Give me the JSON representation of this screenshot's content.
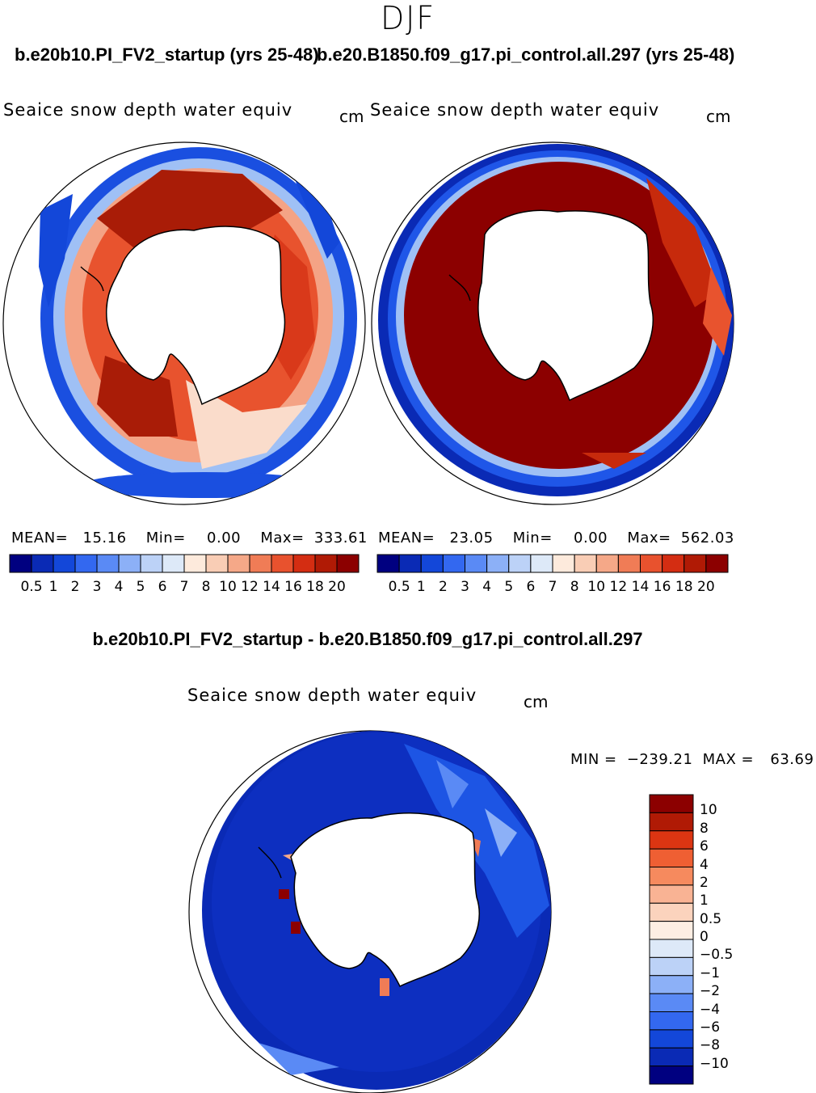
{
  "season": "DJF",
  "panels": [
    {
      "run_title": "b.e20b10.PI_FV2_startup (yrs 25-48)",
      "variable": "Seaice snow depth water equiv",
      "units": "cm",
      "mean_label": "MEAN=",
      "mean": "15.16",
      "min_label": "Min=",
      "min": "0.00",
      "max_label": "Max=",
      "max": "333.61"
    },
    {
      "run_title": "b.e20.B1850.f09_g17.pi_control.all.297 (yrs 25-48)",
      "variable": "Seaice snow depth water equiv",
      "units": "cm",
      "mean_label": "MEAN=",
      "mean": "23.05",
      "min_label": "Min=",
      "min": "0.00",
      "max_label": "Max=",
      "max": "562.03"
    }
  ],
  "abs_colorbar": {
    "colors": [
      "#000080",
      "#0a2ab5",
      "#1347d9",
      "#3368f0",
      "#5a8af5",
      "#8cb0f7",
      "#bcd2f7",
      "#dde9f8",
      "#fdeadc",
      "#f9cdb5",
      "#f5a888",
      "#f07c56",
      "#e8522e",
      "#d42d12",
      "#b01a05",
      "#8c0000"
    ],
    "labels": [
      "0.5",
      "1",
      "2",
      "3",
      "4",
      "5",
      "6",
      "7",
      "8",
      "10",
      "12",
      "14",
      "16",
      "18",
      "20"
    ]
  },
  "difference": {
    "title": "b.e20b10.PI_FV2_startup - b.e20.B1850.f09_g17.pi_control.all.297",
    "variable": "Seaice snow depth water equiv",
    "units": "cm",
    "min_label": "MIN =",
    "min": "−239.21",
    "max_label": "MAX =",
    "max": "63.69",
    "colors": [
      "#8c0000",
      "#b01a05",
      "#dc3512",
      "#ef5f33",
      "#f68a5e",
      "#f9b394",
      "#fbd3bd",
      "#fdeee3",
      "#dde9f8",
      "#bcd2f7",
      "#8cb0f7",
      "#5a8af5",
      "#3368f0",
      "#1347d9",
      "#0a2ab5",
      "#000080"
    ],
    "labels": [
      "10",
      "8",
      "6",
      "4",
      "2",
      "1",
      "0.5",
      "0",
      "−0.5",
      "−1",
      "−2",
      "−4",
      "−6",
      "−8",
      "−10"
    ]
  }
}
